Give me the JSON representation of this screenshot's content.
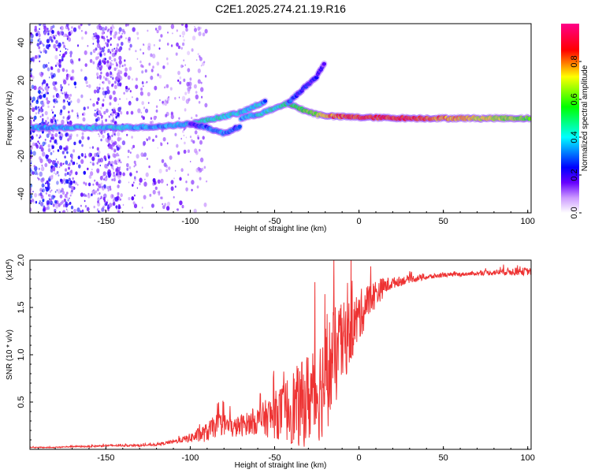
{
  "figure_title": "C2E1.2025.274.21.19.R16",
  "chart_data": [
    {
      "type": "heatmap",
      "title": "C2E1.2025.274.21.19.R16",
      "xlabel": "Height of straight line (km)",
      "ylabel": "Frequency (Hz)",
      "xlim": [
        -195,
        102
      ],
      "ylim": [
        -50,
        50
      ],
      "xticks": [
        -150,
        -100,
        -50,
        0,
        50,
        100
      ],
      "yticks": [
        -40,
        -20,
        0,
        20,
        40
      ],
      "xtick_labels": [
        "-150",
        "-100",
        "-50",
        "0",
        "50",
        "100"
      ],
      "ytick_labels": [
        "-40",
        "-20",
        "0",
        "20",
        "40"
      ],
      "colorbar": {
        "label": "Normalized spectral amplitude",
        "range": [
          0,
          1
        ],
        "ticks": [
          0.0,
          0.2,
          0.4,
          0.6,
          0.8
        ],
        "tick_labels": [
          "0.0",
          "0.2",
          "0.4",
          "0.6",
          "0.8"
        ],
        "colors": [
          "#ffffff",
          "#6600ff",
          "#0000ff",
          "#00ffff",
          "#00ff00",
          "#ffff00",
          "#ff0000",
          "#ff0088"
        ]
      },
      "ridges": [
        {
          "points": [
            [
              -195,
              -5
            ],
            [
              -150,
              -5
            ],
            [
              -120,
              -4.5
            ],
            [
              -100,
              -3
            ],
            [
              -85,
              0
            ],
            [
              -70,
              3
            ],
            [
              -60,
              7
            ],
            [
              -55,
              9
            ]
          ],
          "amplitude": [
            0.35,
            0.4,
            0.35,
            0.4,
            0.45,
            0.4,
            0.4,
            0.3
          ]
        },
        {
          "points": [
            [
              -70,
              0
            ],
            [
              -60,
              2
            ],
            [
              -50,
              5
            ],
            [
              -42,
              8
            ],
            [
              -35,
              5
            ],
            [
              -25,
              2
            ],
            [
              -15,
              1
            ],
            [
              0,
              0.5
            ],
            [
              30,
              0
            ],
            [
              102,
              0
            ]
          ],
          "amplitude": [
            0.35,
            0.4,
            0.45,
            0.5,
            0.55,
            0.65,
            0.8,
            0.85,
            0.85,
            0.6
          ]
        },
        {
          "points": [
            [
              -42,
              8
            ],
            [
              -35,
              14
            ],
            [
              -25,
              22
            ],
            [
              -20,
              30
            ]
          ],
          "amplitude": [
            0.3,
            0.25,
            0.2,
            0.15
          ]
        },
        {
          "points": [
            [
              -100,
              -3
            ],
            [
              -90,
              -5
            ],
            [
              -80,
              -8
            ],
            [
              -70,
              -4
            ]
          ],
          "amplitude": [
            0.2,
            0.3,
            0.35,
            0.25
          ]
        }
      ]
    },
    {
      "type": "line",
      "ylabel": "SNR (10 * v/v)",
      "y_multiplier": "(x10^4)",
      "y_multiplier_base": "(x10",
      "y_multiplier_exp": "4",
      "y_multiplier_close": ")",
      "xlabel": "Height of straight line (km)",
      "xlim": [
        -195,
        102
      ],
      "ylim": [
        0,
        2.0
      ],
      "xticks": [
        -150,
        -100,
        -50,
        0,
        50,
        100
      ],
      "yticks": [
        0.5,
        1.0,
        1.5,
        2.0
      ],
      "xtick_labels": [
        "-150",
        "-100",
        "-50",
        "0",
        "50",
        "100"
      ],
      "ytick_labels": [
        "0.5",
        "1.0",
        "1.5",
        "2.0"
      ],
      "line_color": "#ee3333",
      "series": [
        {
          "x": [
            -195,
            -180,
            -170,
            -160,
            -150,
            -140,
            -130,
            -120,
            -110,
            -105,
            -100,
            -95,
            -90,
            -85,
            -80,
            -75,
            -70,
            -65,
            -60,
            -55,
            -50,
            -45,
            -40,
            -35,
            -30,
            -25,
            -20,
            -15,
            -10,
            -5,
            0,
            5,
            10,
            15,
            20,
            25,
            30,
            40,
            50,
            60,
            70,
            80,
            90,
            102
          ],
          "y": [
            0.02,
            0.02,
            0.03,
            0.03,
            0.04,
            0.04,
            0.04,
            0.05,
            0.08,
            0.1,
            0.12,
            0.15,
            0.18,
            0.25,
            0.27,
            0.22,
            0.25,
            0.28,
            0.3,
            0.33,
            0.36,
            0.4,
            0.45,
            0.45,
            0.55,
            0.6,
            0.75,
            0.95,
            1.1,
            1.25,
            1.4,
            1.55,
            1.65,
            1.72,
            1.76,
            1.78,
            1.8,
            1.82,
            1.84,
            1.85,
            1.86,
            1.87,
            1.88,
            1.88
          ],
          "noise": [
            0.005,
            0.005,
            0.008,
            0.008,
            0.01,
            0.01,
            0.01,
            0.012,
            0.02,
            0.03,
            0.05,
            0.08,
            0.1,
            0.12,
            0.12,
            0.1,
            0.12,
            0.12,
            0.15,
            0.2,
            0.25,
            0.3,
            0.4,
            0.45,
            0.5,
            0.55,
            0.6,
            0.55,
            0.45,
            0.35,
            0.28,
            0.2,
            0.15,
            0.1,
            0.06,
            0.05,
            0.04,
            0.03,
            0.02,
            0.02,
            0.02,
            0.03,
            0.04,
            0.04
          ]
        }
      ]
    }
  ]
}
